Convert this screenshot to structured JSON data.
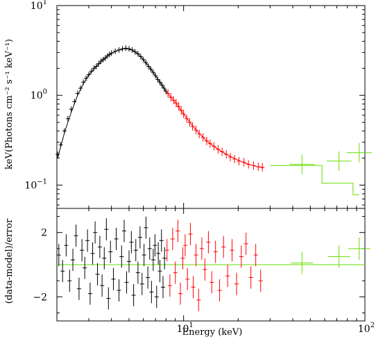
{
  "chart_data": [
    {
      "type": "scatter",
      "panel": "spectrum",
      "xscale": "log",
      "yscale": "log",
      "xlim": [
        2.0,
        100
      ],
      "ylim": [
        0.055,
        10
      ],
      "ylabel": "keV(Photons cm⁻² s⁻¹ keV⁻¹)",
      "yticks": [
        {
          "value": 10,
          "base": "10",
          "exp": "1"
        },
        {
          "value": 1,
          "base": "10",
          "exp": "0"
        },
        {
          "value": 0.1,
          "base": "10",
          "exp": "−1"
        }
      ],
      "series": [
        {
          "color": "#000000",
          "points": [
            [
              2.02,
              0.22
            ],
            [
              2.1,
              0.28
            ],
            [
              2.2,
              0.4
            ],
            [
              2.3,
              0.55
            ],
            [
              2.4,
              0.7
            ],
            [
              2.5,
              0.85
            ],
            [
              2.6,
              1.05
            ],
            [
              2.7,
              1.2
            ],
            [
              2.8,
              1.4
            ],
            [
              2.9,
              1.55
            ],
            [
              3.0,
              1.7
            ],
            [
              3.1,
              1.85
            ],
            [
              3.2,
              2.0
            ],
            [
              3.3,
              2.1
            ],
            [
              3.4,
              2.25
            ],
            [
              3.5,
              2.4
            ],
            [
              3.6,
              2.5
            ],
            [
              3.7,
              2.6
            ],
            [
              3.8,
              2.75
            ],
            [
              3.9,
              2.85
            ],
            [
              4.0,
              2.95
            ],
            [
              4.2,
              3.1
            ],
            [
              4.4,
              3.2
            ],
            [
              4.6,
              3.3
            ],
            [
              4.8,
              3.35
            ],
            [
              5.0,
              3.3
            ],
            [
              5.2,
              3.2
            ],
            [
              5.4,
              3.05
            ],
            [
              5.6,
              2.9
            ],
            [
              5.8,
              2.7
            ],
            [
              6.0,
              2.5
            ],
            [
              6.2,
              2.3
            ],
            [
              6.4,
              2.1
            ],
            [
              6.6,
              1.95
            ],
            [
              6.8,
              1.8
            ],
            [
              7.0,
              1.65
            ],
            [
              7.2,
              1.5
            ],
            [
              7.4,
              1.4
            ],
            [
              7.6,
              1.3
            ],
            [
              7.8,
              1.2
            ],
            [
              8.0,
              1.1
            ]
          ],
          "model": [
            [
              2.02,
              0.2
            ],
            [
              2.2,
              0.38
            ],
            [
              2.4,
              0.65
            ],
            [
              2.6,
              1.0
            ],
            [
              2.8,
              1.35
            ],
            [
              3.0,
              1.7
            ],
            [
              3.3,
              2.1
            ],
            [
              3.6,
              2.5
            ],
            [
              4.0,
              2.95
            ],
            [
              4.4,
              3.2
            ],
            [
              4.8,
              3.32
            ],
            [
              5.2,
              3.2
            ],
            [
              5.6,
              2.9
            ],
            [
              6.0,
              2.5
            ],
            [
              6.4,
              2.12
            ],
            [
              6.8,
              1.8
            ],
            [
              7.2,
              1.52
            ],
            [
              7.6,
              1.3
            ],
            [
              8.0,
              1.1
            ]
          ],
          "residuals": [
            [
              2.05,
              0.6
            ],
            [
              2.15,
              -0.4
            ],
            [
              2.25,
              1.2
            ],
            [
              2.35,
              -1.0
            ],
            [
              2.45,
              0.3
            ],
            [
              2.55,
              1.8
            ],
            [
              2.65,
              -1.5
            ],
            [
              2.75,
              0.9
            ],
            [
              2.85,
              -0.2
            ],
            [
              2.95,
              1.5
            ],
            [
              3.05,
              -1.8
            ],
            [
              3.15,
              0.7
            ],
            [
              3.25,
              2.0
            ],
            [
              3.35,
              -0.6
            ],
            [
              3.45,
              1.1
            ],
            [
              3.55,
              -1.3
            ],
            [
              3.65,
              0.4
            ],
            [
              3.75,
              2.2
            ],
            [
              3.85,
              -2.1
            ],
            [
              3.95,
              0.8
            ],
            [
              4.1,
              -0.9
            ],
            [
              4.25,
              1.6
            ],
            [
              4.4,
              -1.6
            ],
            [
              4.55,
              0.5
            ],
            [
              4.7,
              2.1
            ],
            [
              4.85,
              -1.1
            ],
            [
              5.0,
              0.2
            ],
            [
              5.15,
              1.4
            ],
            [
              5.3,
              -1.9
            ],
            [
              5.45,
              0.9
            ],
            [
              5.6,
              -0.5
            ],
            [
              5.75,
              1.7
            ],
            [
              5.9,
              -1.2
            ],
            [
              6.05,
              0.6
            ],
            [
              6.2,
              2.3
            ],
            [
              6.35,
              -0.8
            ],
            [
              6.5,
              1.0
            ],
            [
              6.65,
              -1.7
            ],
            [
              6.8,
              0.3
            ],
            [
              6.95,
              1.2
            ],
            [
              7.1,
              -2.0
            ],
            [
              7.25,
              0.7
            ],
            [
              7.4,
              -0.4
            ],
            [
              7.55,
              1.5
            ],
            [
              7.7,
              -1.4
            ],
            [
              7.85,
              0.4
            ]
          ]
        },
        {
          "color": "#ff0000",
          "points": [
            [
              8.2,
              1.05
            ],
            [
              8.5,
              0.95
            ],
            [
              8.8,
              0.88
            ],
            [
              9.1,
              0.82
            ],
            [
              9.4,
              0.75
            ],
            [
              9.7,
              0.68
            ],
            [
              10.0,
              0.62
            ],
            [
              10.4,
              0.55
            ],
            [
              10.8,
              0.5
            ],
            [
              11.2,
              0.45
            ],
            [
              11.7,
              0.41
            ],
            [
              12.2,
              0.37
            ],
            [
              12.8,
              0.34
            ],
            [
              13.4,
              0.31
            ],
            [
              14.0,
              0.29
            ],
            [
              14.7,
              0.27
            ],
            [
              15.5,
              0.25
            ],
            [
              16.3,
              0.235
            ],
            [
              17.2,
              0.22
            ],
            [
              18.1,
              0.205
            ],
            [
              19.1,
              0.195
            ],
            [
              20.2,
              0.185
            ],
            [
              21.5,
              0.18
            ],
            [
              22.8,
              0.17
            ],
            [
              24.3,
              0.165
            ],
            [
              25.8,
              0.16
            ],
            [
              27.2,
              0.158
            ]
          ],
          "model": [
            [
              8.0,
              1.1
            ],
            [
              9.0,
              0.84
            ],
            [
              10.0,
              0.62
            ],
            [
              11.0,
              0.48
            ],
            [
              12.0,
              0.39
            ],
            [
              13.0,
              0.33
            ],
            [
              14.0,
              0.29
            ],
            [
              16.0,
              0.24
            ],
            [
              18.0,
              0.21
            ],
            [
              20.0,
              0.19
            ],
            [
              22.0,
              0.175
            ],
            [
              24.0,
              0.165
            ],
            [
              27.5,
              0.155
            ]
          ],
          "residuals": [
            [
              8.1,
              0.9
            ],
            [
              8.4,
              -1.3
            ],
            [
              8.7,
              1.6
            ],
            [
              9.0,
              -0.5
            ],
            [
              9.3,
              2.1
            ],
            [
              9.6,
              -1.8
            ],
            [
              9.9,
              0.4
            ],
            [
              10.2,
              1.2
            ],
            [
              10.5,
              -0.9
            ],
            [
              10.9,
              1.9
            ],
            [
              11.3,
              -1.4
            ],
            [
              11.7,
              0.6
            ],
            [
              12.1,
              -2.2
            ],
            [
              12.6,
              1.0
            ],
            [
              13.1,
              -0.3
            ],
            [
              13.7,
              1.4
            ],
            [
              14.3,
              -1.1
            ],
            [
              15.0,
              0.8
            ],
            [
              15.8,
              -1.6
            ],
            [
              16.6,
              1.1
            ],
            [
              17.5,
              -0.7
            ],
            [
              18.5,
              0.9
            ],
            [
              19.6,
              -1.2
            ],
            [
              20.8,
              0.5
            ],
            [
              22.1,
              1.3
            ],
            [
              23.5,
              -0.8
            ],
            [
              25.0,
              0.6
            ],
            [
              26.6,
              -1.0
            ]
          ]
        },
        {
          "color": "#66dd00",
          "points": [
            [
              45,
              0.17
            ],
            [
              72,
              0.185
            ],
            [
              93,
              0.23
            ]
          ],
          "model": [
            [
              30,
              0.165
            ],
            [
              58,
              0.165
            ],
            [
              58,
              0.105
            ],
            [
              86,
              0.105
            ],
            [
              86,
              0.078
            ],
            [
              93,
              0.078
            ]
          ],
          "residuals": [
            [
              45,
              0.1
            ],
            [
              72,
              0.5
            ],
            [
              93,
              1.0
            ]
          ]
        }
      ]
    },
    {
      "type": "scatter",
      "panel": "residuals",
      "xscale": "log",
      "xlim": [
        2.0,
        100
      ],
      "ylim": [
        -3.5,
        3.5
      ],
      "xlabel": "Energy (keV)",
      "ylabel": "(data-model)/error",
      "yticks": [
        {
          "value": 2,
          "label": "2"
        },
        {
          "value": -2,
          "label": "−2"
        }
      ],
      "xticks": [
        {
          "value": 10,
          "base": "10",
          "exp": "1"
        },
        {
          "value": 100,
          "base": "10",
          "exp": "2"
        }
      ],
      "zero_line_color": "#66dd00"
    }
  ]
}
